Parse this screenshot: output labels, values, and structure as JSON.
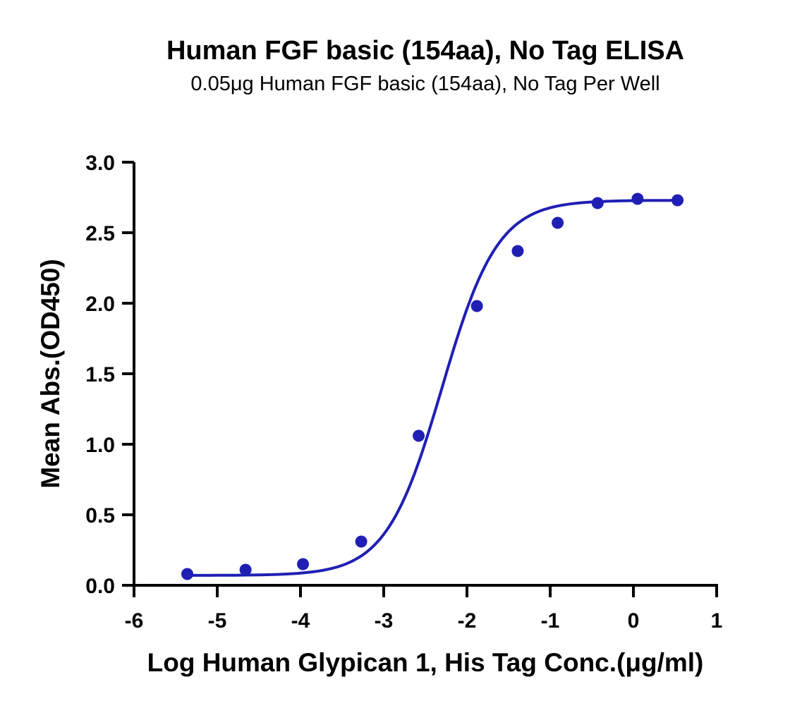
{
  "chart_data": {
    "type": "scatter",
    "title": "Human FGF basic (154aa), No Tag ELISA",
    "subtitle": "0.05μg Human FGF basic (154aa), No Tag Per Well",
    "xlabel": "Log Human Glypican 1, His Tag Conc.(μg/ml)",
    "ylabel": "Mean Abs.(OD450)",
    "xlim": [
      -6,
      1
    ],
    "ylim": [
      0,
      3.0
    ],
    "x_ticks": [
      "-6",
      "-5",
      "-4",
      "-3",
      "-2",
      "-1",
      "0",
      "1"
    ],
    "y_ticks": [
      "0.0",
      "0.5",
      "1.0",
      "1.5",
      "2.0",
      "2.5",
      "3.0"
    ],
    "grid": false,
    "colors": {
      "series": "#1f1fb4",
      "axis": "#000000"
    },
    "series": [
      {
        "points": [
          {
            "x": -5.36,
            "y": 0.08
          },
          {
            "x": -4.66,
            "y": 0.11
          },
          {
            "x": -3.97,
            "y": 0.15
          },
          {
            "x": -3.27,
            "y": 0.31
          },
          {
            "x": -2.58,
            "y": 1.06
          },
          {
            "x": -1.88,
            "y": 1.98
          },
          {
            "x": -1.39,
            "y": 2.37
          },
          {
            "x": -0.91,
            "y": 2.57
          },
          {
            "x": -0.43,
            "y": 2.71
          },
          {
            "x": 0.05,
            "y": 2.74
          },
          {
            "x": 0.53,
            "y": 2.73
          }
        ],
        "fit": {
          "model": "4PL",
          "bottom": 0.07,
          "top": 2.73,
          "logEC50": -2.3,
          "hill": 1.3
        }
      }
    ]
  }
}
